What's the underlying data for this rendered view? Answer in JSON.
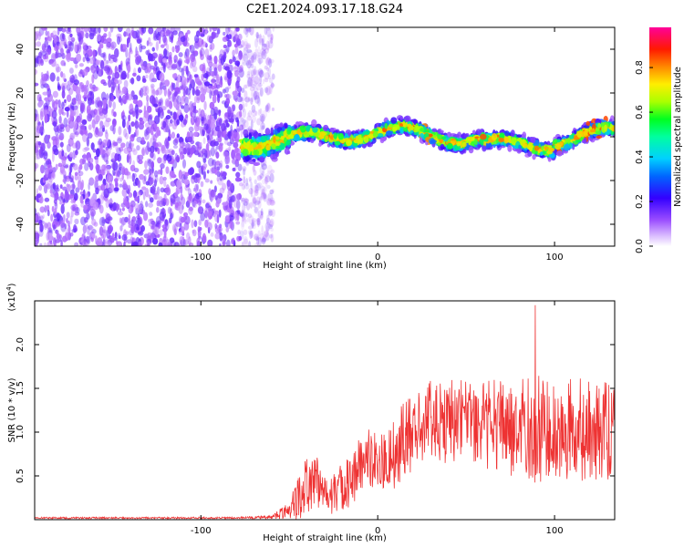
{
  "title": "C2E1.2024.093.17.18.G24",
  "chart_data": [
    {
      "type": "heatmap",
      "xlabel": "Height of straight line (km)",
      "ylabel": "Frequency (Hz)",
      "xlim": [
        -194,
        134
      ],
      "ylim": [
        -50,
        50
      ],
      "xticks": [
        -100,
        0,
        100
      ],
      "yticks": [
        -40,
        -20,
        0,
        20,
        40
      ],
      "colorbar": {
        "label": "Normalized spectral amplitude",
        "range": [
          0,
          0.98
        ],
        "ticks": [
          0.0,
          0.2,
          0.4,
          0.6,
          0.8
        ],
        "colors": [
          "#ffffff",
          "#b066ff",
          "#3300ff",
          "#00c8ff",
          "#00ff40",
          "#ccff00",
          "#ffcc00",
          "#ff2200",
          "#ff0099"
        ]
      },
      "regions": [
        {
          "x": [
            -194,
            -67
          ],
          "desc": "noise",
          "freq_range": [
            -50,
            50
          ],
          "amplitude_range": [
            0.0,
            0.15
          ]
        },
        {
          "x": [
            -77,
            134
          ],
          "desc": "signal band",
          "center_freq": 0,
          "bandwidth_hz": 10,
          "amplitude_range": [
            0.1,
            0.9
          ]
        }
      ]
    },
    {
      "type": "line",
      "xlabel": "Height of straight line (km)",
      "ylabel": "SNR (10 * v/v)",
      "yscale_label": "(x10",
      "yscale_exp": "4",
      "xlim": [
        -194,
        134
      ],
      "ylim": [
        0,
        2.5
      ],
      "xticks": [
        -100,
        0,
        100
      ],
      "yticks": [
        0.5,
        1.0,
        1.5,
        2.0
      ],
      "color": "#ee3333",
      "envelope": {
        "x": [
          -194,
          -80,
          -60,
          -50,
          -45,
          -40,
          -35,
          -30,
          -25,
          -20,
          -15,
          -10,
          -5,
          0,
          5,
          10,
          15,
          20,
          25,
          30,
          40,
          50,
          60,
          70,
          80,
          90,
          100,
          110,
          120,
          134
        ],
        "mean": [
          0.02,
          0.02,
          0.03,
          0.1,
          0.25,
          0.4,
          0.45,
          0.35,
          0.3,
          0.35,
          0.45,
          0.6,
          0.7,
          0.7,
          0.65,
          0.75,
          0.95,
          1.0,
          1.05,
          1.1,
          1.15,
          1.15,
          1.1,
          1.05,
          1.05,
          1.05,
          1.0,
          1.05,
          1.0,
          1.0
        ],
        "amp": [
          0.01,
          0.01,
          0.02,
          0.1,
          0.3,
          0.35,
          0.3,
          0.25,
          0.25,
          0.3,
          0.3,
          0.35,
          0.35,
          0.3,
          0.35,
          0.4,
          0.45,
          0.45,
          0.45,
          0.5,
          0.5,
          0.45,
          0.5,
          0.55,
          0.55,
          0.65,
          0.55,
          0.6,
          0.6,
          0.55
        ]
      },
      "peak": {
        "x": 89,
        "y": 2.45
      }
    }
  ]
}
